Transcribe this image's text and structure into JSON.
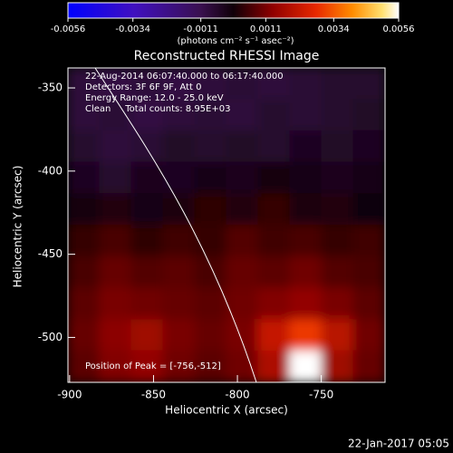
{
  "chart_data": {
    "type": "heatmap",
    "title": "Reconstructed RHESSI Image",
    "xlabel": "Heliocentric X (arcsec)",
    "ylabel": "Heliocentric Y (arcsec)",
    "annotations": [
      "22-Aug-2014 06:07:40.000 to 06:17:40.000",
      "Detectors: 3F 6F 9F, Att 0",
      "Energy Range: 12.0 - 25.0 keV",
      "Clean     Total counts: 8.95E+03"
    ],
    "peak_label": "Position of Peak = [-756,-512]",
    "timestamp": "22-Jan-2017 05:05",
    "xlim": [
      -901,
      -712
    ],
    "xticks": [
      -900,
      -850,
      -800,
      -750
    ],
    "ylim": [
      -527,
      -338
    ],
    "yticks": [
      -500,
      -450,
      -400,
      -350
    ],
    "colorbar": {
      "label": "(photons cm⁻² s⁻¹ asec⁻²)",
      "lim": [
        -0.0056,
        0.0056
      ],
      "ticks": [
        -0.0056,
        -0.0034,
        -0.0011,
        0.0011,
        0.0034,
        0.0056
      ]
    },
    "z": [
      [
        -0.0008,
        -0.0009,
        -0.0008,
        -0.0009,
        -0.0008,
        -0.0007,
        -0.0008,
        -0.0007,
        -0.0006,
        -0.0006
      ],
      [
        -0.0008,
        -0.0007,
        -0.0009,
        -0.0008,
        -0.0007,
        -0.0008,
        -0.0006,
        -0.0007,
        -0.0006,
        -0.0005
      ],
      [
        -0.0006,
        -0.0008,
        -0.0007,
        -0.0005,
        -0.0006,
        -0.0005,
        -0.0006,
        -0.0004,
        -0.0005,
        -0.0004
      ],
      [
        -0.0004,
        -0.0006,
        -0.0003,
        -0.0004,
        -0.0002,
        -0.0003,
        -0.0001,
        -0.0002,
        -0.0003,
        -0.0002
      ],
      [
        -0.0001,
        0.0002,
        -0.0002,
        0.0001,
        0.0003,
        0.0002,
        0.0004,
        0.0001,
        0.0002,
        0.0
      ],
      [
        0.0004,
        0.0006,
        0.0003,
        0.0005,
        0.0004,
        0.0007,
        0.0005,
        0.0006,
        0.0004,
        0.0005
      ],
      [
        0.0006,
        0.0009,
        0.0007,
        0.0008,
        0.0006,
        0.0009,
        0.0008,
        0.001,
        0.0007,
        0.0006
      ],
      [
        0.0008,
        0.0011,
        0.001,
        0.0009,
        0.0008,
        0.001,
        0.0012,
        0.0014,
        0.0011,
        0.0008
      ],
      [
        0.0009,
        0.0013,
        0.0016,
        0.0011,
        0.0009,
        0.0011,
        0.0022,
        0.003,
        0.002,
        0.001
      ],
      [
        0.0008,
        0.0012,
        0.0014,
        0.001,
        0.0008,
        0.001,
        0.0018,
        0.0056,
        0.0016,
        0.0009
      ]
    ]
  }
}
